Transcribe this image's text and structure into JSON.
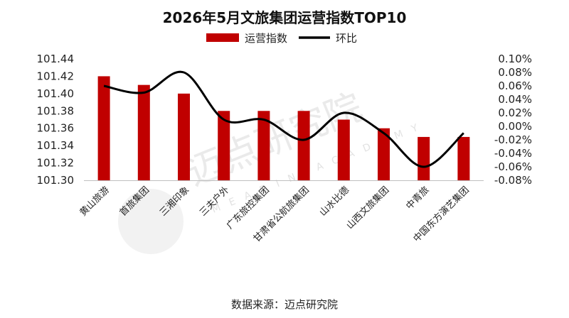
{
  "chart_data": {
    "type": "bar",
    "title": "2026年5月文旅集团运营指数TOP10",
    "categories": [
      "黄山旅游",
      "首旅集团",
      "三湘印象",
      "三夫户外",
      "广东旅控集团",
      "甘肃省公航旅集团",
      "山水比德",
      "山西文旅集团",
      "中青旅",
      "中国东方演艺集团"
    ],
    "series": [
      {
        "name": "运营指数",
        "type": "bar",
        "axis": "left",
        "color": "#c00000",
        "values": [
          101.42,
          101.41,
          101.4,
          101.38,
          101.38,
          101.38,
          101.37,
          101.36,
          101.35,
          101.35
        ]
      },
      {
        "name": "环比",
        "type": "line",
        "axis": "right",
        "color": "#000000",
        "values": [
          0.06,
          0.05,
          0.08,
          0.01,
          0.01,
          -0.02,
          0.02,
          -0.01,
          -0.06,
          -0.01
        ]
      }
    ],
    "y_left": {
      "lim": [
        101.3,
        101.44
      ],
      "ticks": [
        101.3,
        101.32,
        101.34,
        101.36,
        101.38,
        101.4,
        101.42,
        101.44
      ],
      "tick_labels": [
        "101.30",
        "101.32",
        "101.34",
        "101.36",
        "101.38",
        "101.40",
        "101.42",
        "101.44"
      ]
    },
    "y_right": {
      "lim": [
        -0.08,
        0.1
      ],
      "ticks": [
        -0.08,
        -0.06,
        -0.04,
        -0.02,
        0.0,
        0.02,
        0.04,
        0.06,
        0.08,
        0.1
      ],
      "tick_labels": [
        "-0.08%",
        "-0.06%",
        "-0.04%",
        "-0.02%",
        "0.00%",
        "0.02%",
        "0.04%",
        "0.06%",
        "0.08%",
        "0.10%"
      ]
    },
    "legend": {
      "position": "top-center"
    },
    "grid": false
  },
  "source_text": "数据来源：迈点研究院",
  "watermark": {
    "text": "迈点研究院",
    "subtext": "MEADIN ACADEMY"
  }
}
